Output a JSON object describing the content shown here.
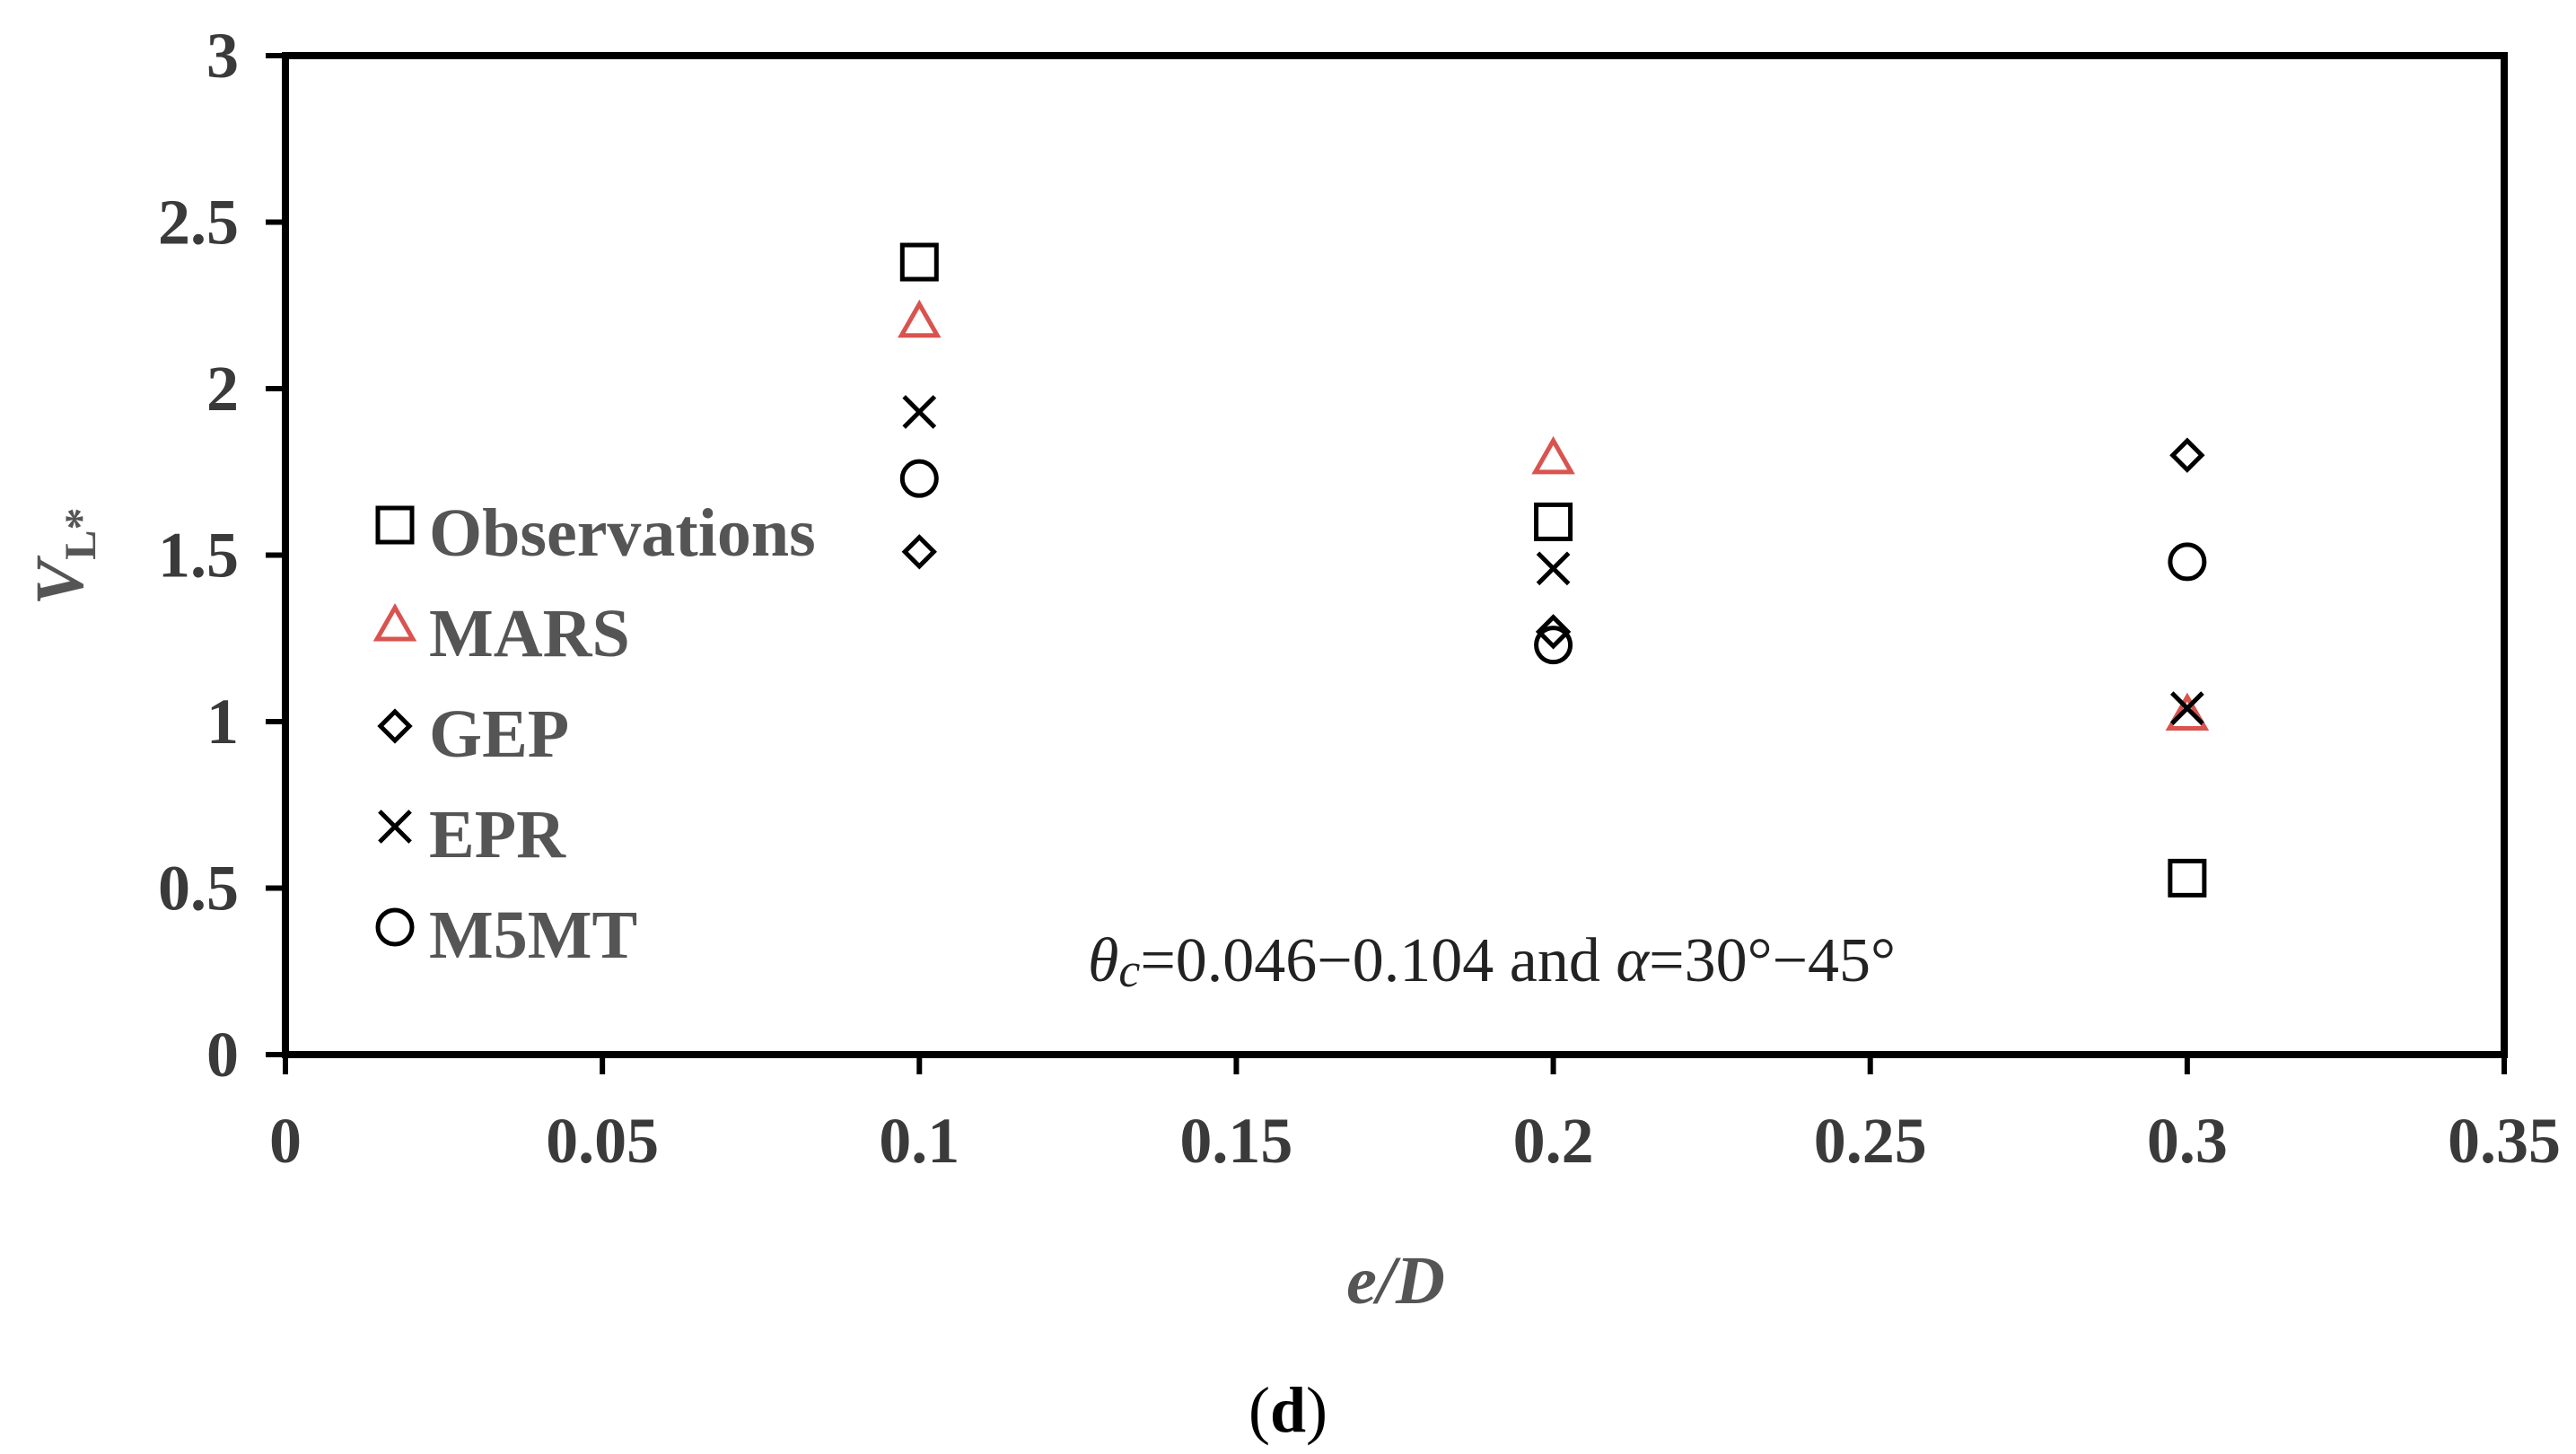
{
  "chart_data": {
    "type": "scatter",
    "xlabel": "e/D",
    "ylabel": "V_L*",
    "ylabel_main": "V",
    "ylabel_sub": "L*",
    "xlim": [
      0,
      0.35
    ],
    "ylim": [
      0,
      3
    ],
    "xticks": [
      "0",
      "0.05",
      "0.1",
      "0.15",
      "0.2",
      "0.25",
      "0.3",
      "0.35"
    ],
    "xtick_values": [
      0,
      0.05,
      0.1,
      0.15,
      0.2,
      0.25,
      0.3,
      0.35
    ],
    "yticks": [
      "0",
      "0.5",
      "1",
      "1.5",
      "2",
      "2.5",
      "3"
    ],
    "ytick_values": [
      0,
      0.5,
      1,
      1.5,
      2,
      2.5,
      3
    ],
    "grid": false,
    "legend_position": "left",
    "annotation": "θc=0.046−0.104 and α=30°−45°",
    "annotation_parts": {
      "theta": "θ",
      "c": "c",
      "text1": "=0.046−0.104 and ",
      "alpha": "α",
      "text2": "=30°−45°"
    },
    "panel_label": {
      "open": "(",
      "letter": "d",
      "close": ")"
    },
    "series": [
      {
        "name": "Observations",
        "marker": "square",
        "color": "#000000",
        "x": [
          0.1,
          0.2,
          0.3
        ],
        "y": [
          2.38,
          1.6,
          0.53
        ]
      },
      {
        "name": "MARS",
        "marker": "triangle",
        "color": "#d9534f",
        "x": [
          0.1,
          0.2,
          0.3
        ],
        "y": [
          2.2,
          1.79,
          1.02
        ]
      },
      {
        "name": "GEP",
        "marker": "diamond",
        "color": "#000000",
        "x": [
          0.1,
          0.2,
          0.3
        ],
        "y": [
          1.51,
          1.27,
          1.8
        ]
      },
      {
        "name": "EPR",
        "marker": "cross",
        "color": "#000000",
        "x": [
          0.1,
          0.2,
          0.3
        ],
        "y": [
          1.93,
          1.46,
          1.04
        ]
      },
      {
        "name": "M5MT",
        "marker": "circle",
        "color": "#000000",
        "x": [
          0.1,
          0.2,
          0.3
        ],
        "y": [
          1.73,
          1.23,
          1.48
        ]
      }
    ]
  }
}
